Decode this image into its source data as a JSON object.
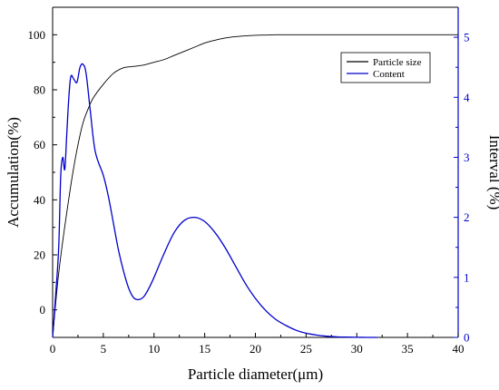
{
  "chart_data": {
    "type": "line",
    "xlabel": "Particle diameter(μm)",
    "ylabel_left": "Accumulation(%)",
    "ylabel_right": "Interval (%)",
    "xlim": [
      0,
      40
    ],
    "ylim_left": [
      -10,
      110
    ],
    "ylim_right": [
      0,
      5.5
    ],
    "x_ticks": [
      0,
      5,
      10,
      15,
      20,
      25,
      30,
      35,
      40
    ],
    "y_left_ticks": [
      0,
      20,
      40,
      60,
      80,
      100
    ],
    "y_right_ticks": [
      0,
      1,
      2,
      3,
      4,
      5
    ],
    "legend_position": "top-right",
    "grid": false,
    "series": [
      {
        "name": "Particle size",
        "axis": "left",
        "color": "#000000",
        "x": [
          0,
          0.5,
          1,
          1.5,
          2,
          2.5,
          3,
          3.5,
          4,
          5,
          6,
          7,
          8,
          9,
          10,
          11,
          12,
          13,
          14,
          15,
          16,
          17,
          18,
          19,
          20,
          21,
          22,
          25,
          30,
          35,
          40
        ],
        "y": [
          -10,
          10,
          25,
          38,
          50,
          60,
          68,
          73,
          77,
          82,
          86,
          88,
          88.5,
          89,
          90,
          91,
          92.5,
          94,
          95.5,
          97,
          98,
          98.8,
          99.3,
          99.6,
          99.8,
          99.9,
          100,
          100,
          100,
          100,
          100
        ]
      },
      {
        "name": "Content",
        "axis": "right",
        "color": "#0000cc",
        "x": [
          0,
          0.3,
          0.6,
          0.8,
          1.0,
          1.2,
          1.4,
          1.6,
          1.8,
          2.1,
          2.4,
          2.7,
          3.0,
          3.3,
          3.7,
          4.2,
          5.0,
          5.5,
          6.0,
          6.5,
          7.0,
          7.5,
          8.0,
          8.5,
          9.0,
          9.5,
          10,
          11,
          12,
          13,
          14,
          15,
          16,
          17,
          18,
          19,
          20,
          21,
          22,
          23,
          24,
          25,
          26,
          27,
          28,
          29,
          30,
          31,
          32
        ],
        "y": [
          0,
          0.7,
          1.5,
          2.7,
          3.0,
          2.8,
          3.4,
          4.0,
          4.35,
          4.3,
          4.25,
          4.5,
          4.55,
          4.4,
          3.8,
          3.1,
          2.7,
          2.35,
          1.9,
          1.45,
          1.1,
          0.82,
          0.66,
          0.63,
          0.68,
          0.82,
          1.0,
          1.4,
          1.75,
          1.95,
          2.0,
          1.93,
          1.75,
          1.5,
          1.2,
          0.9,
          0.65,
          0.45,
          0.3,
          0.2,
          0.12,
          0.07,
          0.04,
          0.02,
          0.01,
          0.005,
          0.002,
          0.0,
          0.0
        ]
      }
    ]
  }
}
